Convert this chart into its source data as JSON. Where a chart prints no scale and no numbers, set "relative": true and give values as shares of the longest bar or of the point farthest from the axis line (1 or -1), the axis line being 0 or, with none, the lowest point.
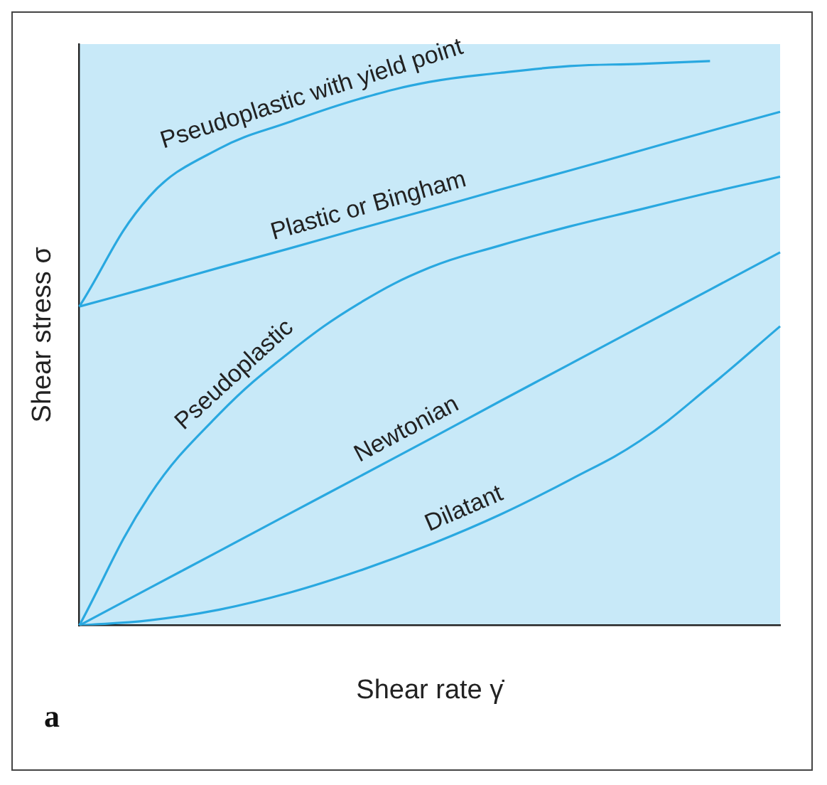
{
  "chart_data": {
    "type": "line",
    "relative": true,
    "xlabel": "Shear rate γ̇",
    "ylabel": "Shear stress σ",
    "annotations": [
      "a"
    ],
    "marker": "none",
    "grid": false,
    "legend": false,
    "categories": [
      null,
      null,
      null,
      null,
      null,
      null,
      null,
      null,
      null,
      null,
      null
    ],
    "series": [
      {
        "name": "Pseudoplastic with yield point",
        "color": "#29a8e0",
        "values": [
          0.565,
          0.76,
          0.845,
          0.892,
          0.933,
          0.963,
          0.979,
          0.991,
          0.995,
          1,
          null
        ]
      },
      {
        "name": "Plastic or Bingham",
        "color": "#29a8e0",
        "values": [
          0.565,
          0.599,
          0.634,
          0.668,
          0.703,
          0.737,
          0.772,
          0.806,
          0.841,
          0.876,
          0.91
        ]
      },
      {
        "name": "Pseudoplastic",
        "color": "#29a8e0",
        "values": [
          0,
          0.23,
          0.375,
          0.484,
          0.571,
          0.634,
          0.673,
          0.707,
          0.737,
          0.767,
          0.795
        ]
      },
      {
        "name": "Newtonian",
        "color": "#29a8e0",
        "values": [
          0,
          0.066,
          0.132,
          0.198,
          0.264,
          0.33,
          0.397,
          0.463,
          0.529,
          0.595,
          0.661
        ]
      },
      {
        "name": "Dilatant",
        "color": "#29a8e0",
        "values": [
          0,
          0.009,
          0.028,
          0.058,
          0.097,
          0.143,
          0.196,
          0.258,
          0.327,
          0.424,
          0.53
        ]
      }
    ]
  }
}
